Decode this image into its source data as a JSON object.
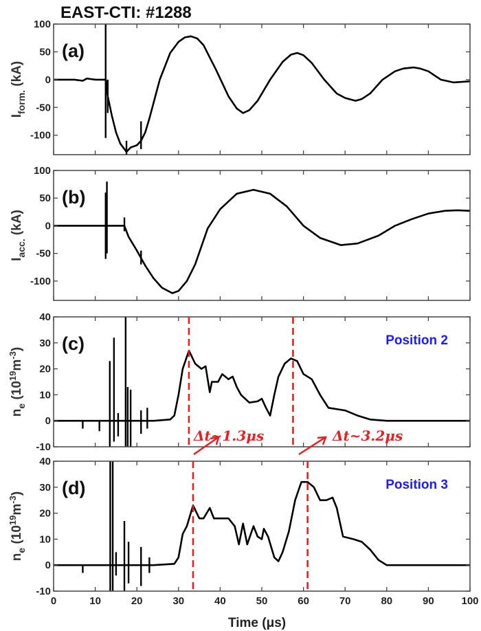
{
  "chart_data": [
    {
      "type": "line",
      "panel_label": "(a)",
      "title": "EAST-CTI: #1288",
      "ylabel_main": "I",
      "ylabel_sub": "form.",
      "ylabel_unit": "(kA)",
      "xlim": [
        0,
        100
      ],
      "ylim": [
        -135,
        100
      ],
      "yticks": [
        100,
        50,
        0,
        -50,
        -100
      ],
      "series": [
        {
          "name": "I_form",
          "x": [
            0,
            5,
            7,
            8,
            10,
            12,
            12.5,
            13,
            14,
            15,
            16,
            17.5,
            18.5,
            20,
            21,
            22,
            23,
            25.5,
            28,
            30,
            31.5,
            33,
            34.5,
            36,
            39,
            42,
            44,
            45.5,
            47,
            49,
            52,
            55,
            57,
            58.5,
            60,
            62,
            65,
            68,
            70,
            72.5,
            74,
            76,
            79,
            82,
            84,
            86.5,
            88,
            90,
            93,
            96,
            100
          ],
          "y": [
            0,
            0,
            -2,
            2,
            0,
            0,
            0,
            -30,
            -65,
            -95,
            -115,
            -130,
            -122,
            -118,
            -110,
            -95,
            -70,
            0,
            48,
            68,
            76,
            78,
            74,
            62,
            18,
            -30,
            -52,
            -60,
            -55,
            -38,
            0,
            32,
            45,
            48,
            44,
            30,
            0,
            -25,
            -33,
            -38,
            -35,
            -25,
            0,
            15,
            20,
            22,
            20,
            15,
            0,
            -5,
            -3
          ]
        }
      ],
      "spikes": [
        {
          "x": 12.5,
          "max": 100,
          "min": -105
        },
        {
          "x": 13,
          "max": 0,
          "min": -60
        },
        {
          "x": 17.5,
          "max": -110,
          "min": -135
        },
        {
          "x": 21,
          "max": -75,
          "min": -125
        }
      ]
    },
    {
      "type": "line",
      "panel_label": "(b)",
      "ylabel_main": "I",
      "ylabel_sub": "acc.",
      "ylabel_unit": "(kA)",
      "xlim": [
        0,
        100
      ],
      "ylim": [
        -135,
        100
      ],
      "yticks": [
        100,
        50,
        0,
        -50,
        -100
      ],
      "series": [
        {
          "name": "I_acc",
          "x": [
            0,
            10,
            12,
            14,
            16,
            17,
            18,
            20,
            22,
            24,
            26,
            28.5,
            30,
            32,
            34,
            37,
            40,
            44,
            48,
            52,
            56,
            60,
            64,
            69,
            73,
            78,
            82,
            86,
            90,
            94,
            97,
            100
          ],
          "y": [
            0,
            0,
            0,
            0,
            0,
            0,
            -20,
            -45,
            -72,
            -95,
            -112,
            -122,
            -118,
            -100,
            -70,
            -5,
            30,
            58,
            65,
            58,
            35,
            0,
            -22,
            -35,
            -32,
            -18,
            0,
            12,
            22,
            27,
            28,
            27
          ]
        }
      ],
      "spikes": [
        {
          "x": 12.5,
          "max": 60,
          "min": -60
        },
        {
          "x": 12.8,
          "max": 80,
          "min": -50
        },
        {
          "x": 17,
          "max": 15,
          "min": -10
        },
        {
          "x": 21,
          "max": -45,
          "min": -70
        }
      ]
    },
    {
      "type": "line",
      "panel_label": "(c)",
      "annotation": "Position 2",
      "ylabel_main": "n",
      "ylabel_sub": "e",
      "ylabel_unit": "(10",
      "ylabel_exp": "19",
      "ylabel_unit2": "m",
      "ylabel_exp2": "-3",
      "ylabel_close": ")",
      "xlim": [
        0,
        100
      ],
      "ylim": [
        -10,
        40
      ],
      "yticks": [
        40,
        30,
        20,
        10,
        0,
        -10
      ],
      "series": [
        {
          "name": "n_e position 2",
          "x": [
            0,
            13,
            24,
            28,
            29,
            30,
            31,
            32.5,
            34,
            35.5,
            36.5,
            37.5,
            38,
            39.5,
            40.5,
            42,
            43,
            44,
            45,
            47,
            49,
            50,
            51,
            52,
            53,
            54,
            55.5,
            57,
            58.5,
            60,
            62,
            64,
            66,
            70,
            73,
            76,
            80,
            90,
            100
          ],
          "y": [
            0,
            0,
            0,
            0.5,
            2,
            10,
            20,
            27,
            22,
            20,
            21,
            11,
            15,
            15,
            18,
            16,
            17,
            13,
            10,
            7,
            7.5,
            8.5,
            5,
            2,
            10,
            17,
            22,
            24,
            23,
            18,
            16,
            10,
            5,
            4,
            2,
            0.5,
            0,
            0,
            0
          ]
        }
      ],
      "spikes": [
        {
          "x": 7,
          "max": 0,
          "min": -3
        },
        {
          "x": 11,
          "max": 0,
          "min": -4
        },
        {
          "x": 13.5,
          "max": 23,
          "min": -10
        },
        {
          "x": 14.5,
          "max": 32,
          "min": -8
        },
        {
          "x": 15.5,
          "max": 3,
          "min": -6
        },
        {
          "x": 17.3,
          "max": 40,
          "min": -10
        },
        {
          "x": 17.8,
          "max": 13,
          "min": -10
        },
        {
          "x": 18.5,
          "max": 12,
          "min": -10
        },
        {
          "x": 21,
          "max": 4,
          "min": -5
        },
        {
          "x": 22.5,
          "max": 5,
          "min": -3
        }
      ],
      "markers": [
        32.5,
        57.5
      ]
    },
    {
      "type": "line",
      "panel_label": "(d)",
      "annotation": "Position 3",
      "ylabel_main": "n",
      "ylabel_sub": "e",
      "ylabel_unit": "(10",
      "ylabel_exp": "19",
      "ylabel_unit2": "m",
      "ylabel_exp2": "-3",
      "ylabel_close": ")",
      "xlabel": "Time (μs)",
      "xlim": [
        0,
        100
      ],
      "ylim": [
        -10,
        40
      ],
      "yticks": [
        40,
        30,
        20,
        10,
        0,
        -10
      ],
      "xticks": [
        0,
        10,
        20,
        30,
        40,
        50,
        60,
        70,
        80,
        90,
        100
      ],
      "series": [
        {
          "name": "n_e position 3",
          "x": [
            0,
            13,
            24,
            29,
            30,
            31,
            32,
            33.5,
            35,
            36,
            37.5,
            38.5,
            40,
            42,
            43.5,
            44.5,
            45.5,
            46.5,
            48,
            49,
            50,
            50.5,
            51.5,
            53,
            54,
            55,
            56.5,
            58,
            59.5,
            61,
            62.5,
            64,
            65.5,
            67,
            68,
            69.5,
            72,
            74,
            76,
            78,
            80,
            90,
            100
          ],
          "y": [
            0,
            0,
            0,
            0.5,
            3,
            12,
            15,
            23,
            18,
            18,
            22,
            18,
            18,
            18,
            15,
            8,
            16,
            8,
            15,
            11,
            10,
            14,
            11,
            3,
            1.5,
            5,
            13,
            25,
            32,
            32,
            30,
            25,
            25,
            26,
            22,
            11,
            10,
            9,
            6,
            2,
            0,
            0,
            0
          ]
        }
      ],
      "spikes": [
        {
          "x": 7,
          "max": 0,
          "min": -3
        },
        {
          "x": 13.6,
          "max": 40,
          "min": -10
        },
        {
          "x": 14.2,
          "max": 40,
          "min": -10
        },
        {
          "x": 15,
          "max": 5,
          "min": -4
        },
        {
          "x": 17,
          "max": 17,
          "min": -10
        },
        {
          "x": 18,
          "max": 9,
          "min": -7
        },
        {
          "x": 21,
          "max": 7,
          "min": -8
        },
        {
          "x": 23,
          "max": 3,
          "min": -3
        }
      ],
      "markers": [
        33.5,
        61
      ]
    }
  ],
  "annotations": {
    "dt1": "Δt~1.3μs",
    "dt2": "Δt~3.2μs"
  },
  "colors": {
    "line": "#000000",
    "marker": "#ee1c1c",
    "position": "#1a1aff"
  }
}
